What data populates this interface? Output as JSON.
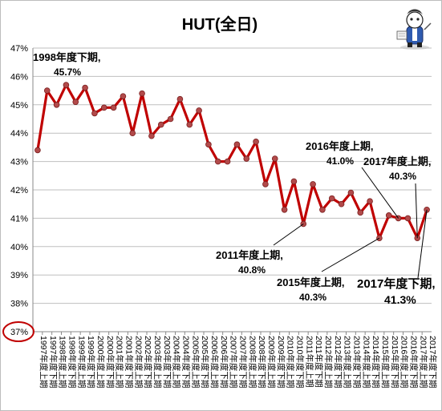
{
  "chart_data": {
    "type": "line",
    "title": "HUT(全日)",
    "xlabel": "",
    "ylabel": "",
    "ylim": [
      37,
      47
    ],
    "ytick_step": 1,
    "y_unit": "%",
    "grid": "horizontal",
    "legend": "none",
    "categories": [
      "1997年度上期",
      "1997年度下期",
      "1998年度上期",
      "1998年度下期",
      "1999年度上期",
      "1999年度下期",
      "2000年度上期",
      "2000年度下期",
      "2001年度上期",
      "2001年度下期",
      "2002年度上期",
      "2002年度下期",
      "2003年度上期",
      "2003年度下期",
      "2004年度上期",
      "2004年度下期",
      "2005年度上期",
      "2005年度下期",
      "2006年度上期",
      "2006年度下期",
      "2007年度上期",
      "2007年度下期",
      "2008年度上期",
      "2008年度下期",
      "2009年度上期",
      "2009年度下期",
      "2010年度上期",
      "2010年度下期",
      "2011年度上期",
      "2011年度下期",
      "2012年度上期",
      "2012年度下期",
      "2013年度上期",
      "2013年度下期",
      "2014年度上期",
      "2014年度下期",
      "2015年度上期",
      "2015年度下期",
      "2016年度上期",
      "2016年度下期",
      "2017年度上期",
      "2017年度下期"
    ],
    "series": [
      {
        "color": "#c00000",
        "marker_color": "#b24a4a",
        "values": [
          43.4,
          45.5,
          45.0,
          45.7,
          45.1,
          45.6,
          44.7,
          44.9,
          44.9,
          45.3,
          44.0,
          45.4,
          43.9,
          44.3,
          44.5,
          45.2,
          44.3,
          44.8,
          43.6,
          43.0,
          43.0,
          43.6,
          43.1,
          43.7,
          42.2,
          43.1,
          41.3,
          42.3,
          40.8,
          42.2,
          41.3,
          41.7,
          41.5,
          41.9,
          41.2,
          41.6,
          40.3,
          41.1,
          41.0,
          41.0,
          40.3,
          41.3
        ]
      }
    ],
    "annotations": [
      {
        "label": "1998年度下期,",
        "value": "45.7%",
        "index": 3,
        "pointer": false
      },
      {
        "label": "2016年度上期,",
        "value": "41.0%",
        "index": 38,
        "pointer": true
      },
      {
        "label": "2017年度上期,",
        "value": "40.3%",
        "index": 40,
        "pointer": true
      },
      {
        "label": "2011年度上期,",
        "value": "40.8%",
        "index": 28,
        "pointer": true
      },
      {
        "label": "2015年度上期,",
        "value": "40.3%",
        "index": 36,
        "pointer": true
      },
      {
        "label": "2017年度下期,",
        "value": "41.3%",
        "index": 41,
        "pointer": true
      }
    ],
    "highlight": {
      "tick": "37%",
      "shape": "ellipse",
      "color": "#c00000"
    }
  },
  "mascot": {
    "icon": "writer-mascot-icon"
  }
}
